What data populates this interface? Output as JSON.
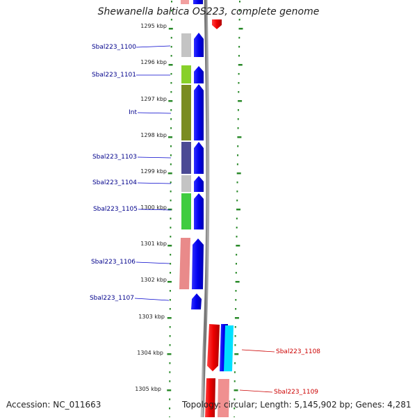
{
  "title": "Shewanella baltica OS223, complete genome",
  "accession": "Accession: NC_011663",
  "topology": "Topology: circular; Length: 5,145,902 bp; Genes: 4,281",
  "scale_ticks": [
    "1295 kbp",
    "1296 kbp",
    "1297 kbp",
    "1298 kbp",
    "1299 kbp",
    "1300 kbp",
    "1301 kbp",
    "1302 kbp",
    "1303 kbp",
    "1304 kbp",
    "1305 kbp"
  ],
  "left_genes": [
    {
      "label": "Sbal223_1100",
      "color": "#c4c4c4",
      "strand": "forward"
    },
    {
      "label": "Sbal223_1101",
      "color": "#88d02a",
      "strand": "forward"
    },
    {
      "label": "Int",
      "color": "#7a8c22",
      "strand": "forward"
    },
    {
      "label": "Sbal223_1103",
      "color": "#4b4a94",
      "strand": "forward"
    },
    {
      "label": "Sbal223_1104",
      "color": "#c4c4c4",
      "strand": "forward"
    },
    {
      "label": "Sbal223_1105",
      "color": "#3fcc3f",
      "strand": "forward"
    },
    {
      "label": "Sbal223_1106",
      "color": "#e98a8a",
      "strand": "forward"
    },
    {
      "label": "Sbal223_1107",
      "color": "#1a1ae8",
      "strand": "forward"
    }
  ],
  "right_genes": [
    {
      "label": "Sbal223_1108",
      "color": "#00e0ff",
      "strand": "reverse"
    },
    {
      "label": "Sbal223_1109",
      "color": "#f09090",
      "strand": "reverse"
    }
  ],
  "colors": {
    "forward": "#0000ee",
    "reverse": "#ee0000",
    "left_label": "#00008b",
    "right_label": "#cc0000",
    "tick": "#2a8a2a",
    "backbone": "#8a8a8a"
  }
}
